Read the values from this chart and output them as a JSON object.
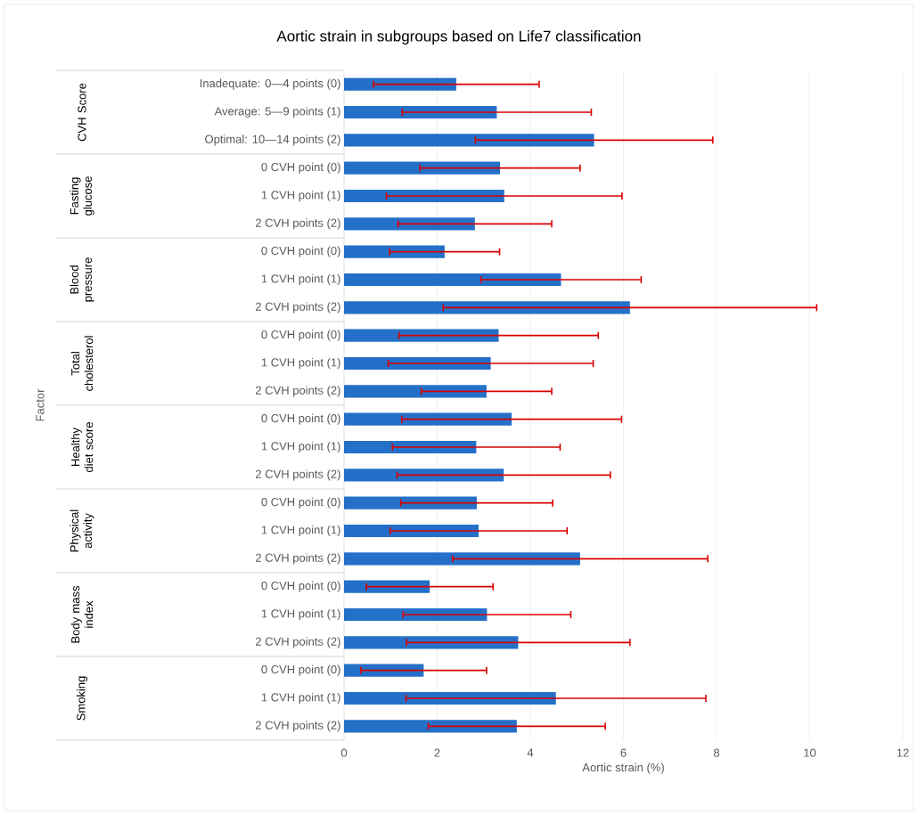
{
  "chart_data": {
    "type": "bar",
    "orientation": "horizontal",
    "title": "Aortic strain in subgroups based on Life7 classification",
    "xlabel": "Aortic strain (%)",
    "categories": [
      "Inadequate: 0—4 points (0)",
      "Average: 5—9 points (1)",
      "Optimal: 10—14 points (2)",
      "0 CVH point (0)",
      "1 CVH point (1)",
      "2 CVH points (2)",
      "0 CVH point (0)",
      "1 CVH point (1)",
      "2 CVH points (2)",
      "0 CVH point (0)",
      "1 CVH point (1)",
      "2 CVH points (2)",
      "0 CVH point (0)",
      "1 CVH point (1)",
      "2 CVH points (2)",
      "0 CVH point (0)",
      "1 CVH point (1)",
      "2 CVH points (2)",
      "0 CVH point (0)",
      "1 CVH point (1)",
      "2 CVH points (2)",
      "0 CVH point (0)",
      "1 CVH point (1)",
      "2 CVH points (2)"
    ],
    "annotations": [
      "Factor",
      "CVH Score",
      "Fasting glucose",
      "Blood pressure",
      "Total cholesterol",
      "Healthy diet score",
      "Physical activity",
      "Body mass index",
      "Smoking"
    ],
    "values": [
      2.41,
      3.28,
      5.37,
      3.35,
      3.44,
      2.81,
      2.16,
      4.66,
      6.14,
      3.32,
      3.15,
      3.06,
      3.6,
      2.84,
      3.43,
      2.85,
      2.89,
      5.07,
      1.84,
      3.07,
      3.74,
      1.71,
      4.55,
      3.71
    ],
    "errors": [
      1.78,
      2.03,
      2.55,
      1.72,
      2.53,
      1.65,
      1.18,
      1.72,
      4.01,
      2.14,
      2.2,
      1.4,
      2.36,
      1.8,
      2.29,
      1.63,
      1.9,
      2.74,
      1.36,
      1.8,
      2.4,
      1.35,
      3.22,
      1.9
    ],
    "color": "#2470c8",
    "xlim": [
      0,
      12
    ],
    "xticks": [
      0,
      2,
      4,
      6,
      8,
      10,
      12
    ],
    "grid": "x"
  }
}
